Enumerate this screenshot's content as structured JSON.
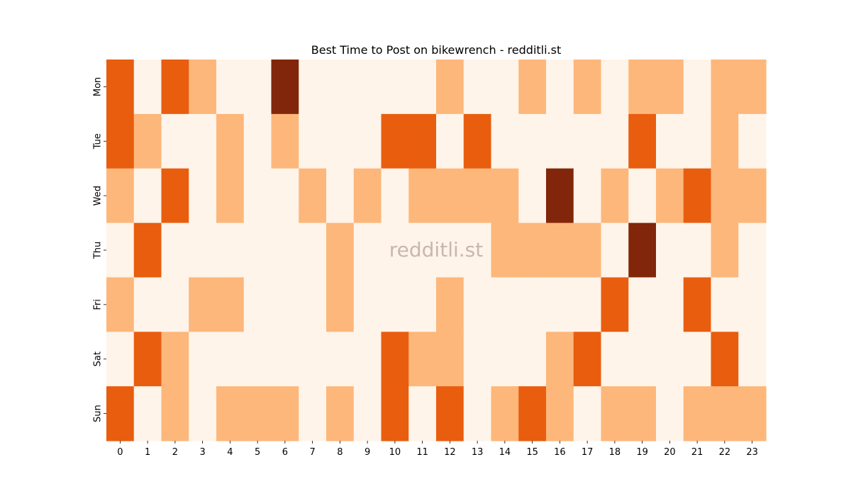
{
  "chart_data": {
    "type": "heatmap",
    "title": "Best Time to Post on bikewrench - redditli.st",
    "watermark": "redditli.st",
    "xlabel": "",
    "ylabel": "",
    "x_categories": [
      "0",
      "1",
      "2",
      "3",
      "4",
      "5",
      "6",
      "7",
      "8",
      "9",
      "10",
      "11",
      "12",
      "13",
      "14",
      "15",
      "16",
      "17",
      "18",
      "19",
      "20",
      "21",
      "22",
      "23"
    ],
    "y_categories": [
      "Mon",
      "Tue",
      "Wed",
      "Thu",
      "Fri",
      "Sat",
      "Sun"
    ],
    "values": [
      [
        2,
        0,
        2,
        1,
        0,
        0,
        3,
        0,
        0,
        0,
        0,
        0,
        1,
        0,
        0,
        1,
        0,
        1,
        0,
        1,
        1,
        0,
        1,
        1
      ],
      [
        2,
        1,
        0,
        0,
        1,
        0,
        1,
        0,
        0,
        0,
        2,
        2,
        0,
        2,
        0,
        0,
        0,
        0,
        0,
        2,
        0,
        0,
        1,
        0
      ],
      [
        1,
        0,
        2,
        0,
        1,
        0,
        0,
        1,
        0,
        1,
        0,
        1,
        1,
        1,
        1,
        0,
        3,
        0,
        1,
        0,
        1,
        2,
        1,
        1
      ],
      [
        0,
        2,
        0,
        0,
        0,
        0,
        0,
        0,
        1,
        0,
        0,
        0,
        0,
        0,
        1,
        1,
        1,
        1,
        0,
        3,
        0,
        0,
        1,
        0
      ],
      [
        1,
        0,
        0,
        1,
        1,
        0,
        0,
        0,
        1,
        0,
        0,
        0,
        1,
        0,
        0,
        0,
        0,
        0,
        2,
        0,
        0,
        2,
        0,
        0
      ],
      [
        0,
        2,
        1,
        0,
        0,
        0,
        0,
        0,
        0,
        0,
        2,
        1,
        1,
        0,
        0,
        0,
        1,
        2,
        0,
        0,
        0,
        0,
        2,
        0
      ],
      [
        2,
        0,
        1,
        0,
        1,
        1,
        1,
        0,
        1,
        0,
        2,
        0,
        2,
        0,
        1,
        2,
        1,
        0,
        1,
        1,
        0,
        1,
        1,
        1
      ]
    ],
    "value_range": [
      0,
      3
    ],
    "colors": [
      "#fff4e9",
      "#fdb77b",
      "#e95d0f",
      "#81260a"
    ],
    "colorbar": false,
    "grid": false
  }
}
